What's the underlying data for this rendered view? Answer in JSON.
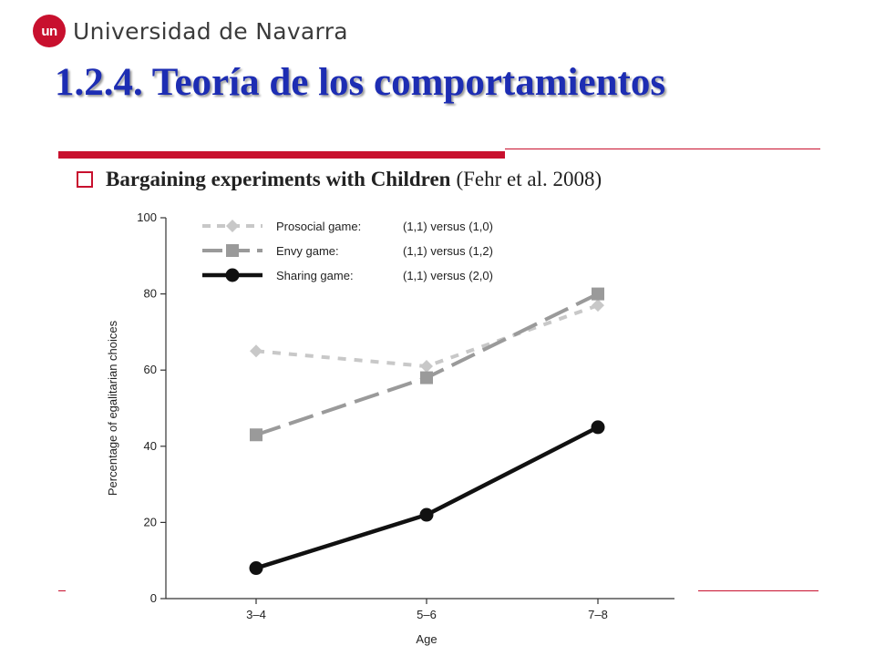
{
  "header": {
    "logo_mark": "un",
    "institution": "Universidad de Navarra",
    "accent": "#c8102e"
  },
  "slide": {
    "title": "1.2.4. Teoría de los comportamientos",
    "title_color": "#1d2db3",
    "bullet_bold": "Bargaining experiments with Children",
    "bullet_cite": "(Fehr et al. 2008)"
  },
  "chart_data": {
    "type": "line",
    "categories": [
      "3–4",
      "5–6",
      "7–8"
    ],
    "xlabel": "Age",
    "ylabel": "Percentage of egalitarian choices",
    "ylim": [
      0,
      100
    ],
    "yticks": [
      0,
      20,
      40,
      60,
      80,
      100
    ],
    "grid": false,
    "legend_position": "top-left",
    "series": [
      {
        "name": "Prosocial game:",
        "comparison": "(1,1) versus (1,0)",
        "values": [
          65,
          61,
          77
        ],
        "color": "#c8c8c8",
        "marker": "diamond",
        "dash": "short-dash"
      },
      {
        "name": "Envy game:",
        "comparison": "(1,1) versus (1,2)",
        "values": [
          43,
          58,
          80
        ],
        "color": "#9a9a9a",
        "marker": "square",
        "dash": "long-dash"
      },
      {
        "name": "Sharing game:",
        "comparison": "(1,1) versus (2,0)",
        "values": [
          8,
          22,
          45
        ],
        "color": "#111111",
        "marker": "circle",
        "dash": "solid"
      }
    ]
  }
}
